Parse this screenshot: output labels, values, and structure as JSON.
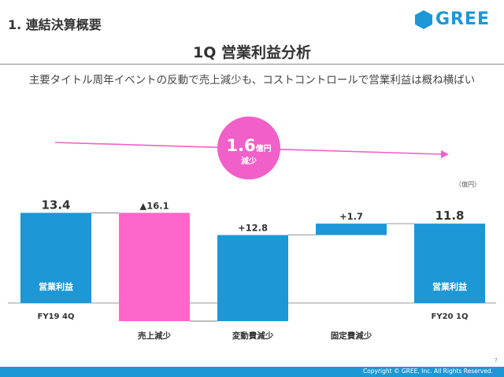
{
  "header": {
    "section_title": "1. 連結決算概要",
    "logo_text": "GREE",
    "page_title": "1Q 営業利益分析",
    "subtitle": "主要タイトル周年イベントの反動で売上減少も、コストコントロールで営業利益は概ね横ばい"
  },
  "colors": {
    "accent_blue": "#1d97d6",
    "decrease_pink": "#ff66cc",
    "arrow_pink": "#f060c8",
    "badge_pink": "#f060c8"
  },
  "chart_data": {
    "type": "waterfall",
    "unit": "（億円）",
    "categories": [
      "FY19 4Q",
      "売上減少",
      "変動費減少",
      "固定費減少",
      "FY20 1Q"
    ],
    "values": [
      13.4,
      -16.1,
      12.8,
      1.7,
      11.8
    ],
    "value_labels": [
      "13.4",
      "▲16.1",
      "+12.8",
      "+1.7",
      "11.8"
    ],
    "bar_inner_labels": [
      "営業利益",
      "",
      "",
      "",
      "営業利益"
    ],
    "bar_kinds": [
      "total",
      "decrease",
      "increase",
      "increase",
      "total"
    ],
    "ylim": [
      -2.9,
      14.3
    ],
    "callout": {
      "value": "1.6",
      "unit": "億円",
      "label": "減少"
    }
  },
  "footer": {
    "copyright": "Copyright © GREE, Inc. All Rights Reserved.",
    "page_number": "7"
  }
}
